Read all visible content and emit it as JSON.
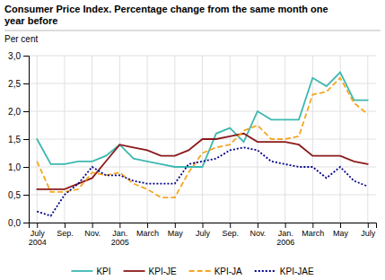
{
  "chart_data": {
    "type": "line",
    "title": "Consumer Price Index. Percentage change from the same month one\nyear before",
    "ylabel": "Per cent",
    "categories": [
      "July\n2004",
      null,
      "Sep.",
      null,
      "Nov.",
      null,
      "Jan.\n2005",
      null,
      "March",
      null,
      "May",
      null,
      "July",
      null,
      "Sep.",
      null,
      "Nov.",
      null,
      "Jan.\n2006",
      null,
      "March",
      null,
      "May",
      null,
      "July"
    ],
    "series": [
      {
        "name": "KPI",
        "color": "#3db8b0",
        "line_style": "solid",
        "values": [
          1.5,
          1.05,
          1.05,
          1.1,
          1.1,
          1.2,
          1.4,
          1.15,
          1.1,
          1.05,
          1.0,
          1.0,
          1.0,
          1.6,
          1.7,
          1.45,
          2.0,
          1.85,
          1.85,
          1.85,
          2.6,
          2.45,
          2.7,
          2.2,
          2.2
        ]
      },
      {
        "name": "KPI-JE",
        "color": "#8b1a1a",
        "line_style": "solid",
        "values": [
          0.6,
          0.6,
          0.6,
          0.7,
          0.8,
          1.1,
          1.4,
          1.35,
          1.3,
          1.2,
          1.2,
          1.3,
          1.5,
          1.5,
          1.55,
          1.6,
          1.45,
          1.45,
          1.45,
          1.4,
          1.2,
          1.2,
          1.2,
          1.1,
          1.05
        ]
      },
      {
        "name": "KPI-JA",
        "color": "#f5a623",
        "line_style": "dashed",
        "values": [
          1.1,
          0.55,
          0.55,
          0.6,
          0.9,
          0.85,
          0.9,
          0.7,
          0.6,
          0.45,
          0.45,
          0.9,
          1.25,
          1.35,
          1.4,
          1.65,
          1.75,
          1.5,
          1.5,
          1.55,
          2.3,
          2.35,
          2.6,
          2.15,
          1.95
        ]
      },
      {
        "name": "KPI-JAE",
        "color": "#00008b",
        "line_style": "dotted",
        "values": [
          0.2,
          0.12,
          0.5,
          0.7,
          1.0,
          0.85,
          0.85,
          0.75,
          0.7,
          0.7,
          0.7,
          1.05,
          1.1,
          1.15,
          1.3,
          1.35,
          1.3,
          1.1,
          1.05,
          1.0,
          1.0,
          0.8,
          1.0,
          0.75,
          0.65
        ]
      }
    ],
    "ylim": [
      0.0,
      3.0
    ],
    "yticks": [
      {
        "value": 0.0,
        "label": "0,0"
      },
      {
        "value": 0.5,
        "label": "0,5"
      },
      {
        "value": 1.0,
        "label": "1,0"
      },
      {
        "value": 1.5,
        "label": "1,5"
      },
      {
        "value": 2.0,
        "label": "2,0"
      },
      {
        "value": 2.5,
        "label": "2,5"
      },
      {
        "value": 3.0,
        "label": "3,0"
      }
    ],
    "grid": true,
    "legend": "bottom"
  }
}
